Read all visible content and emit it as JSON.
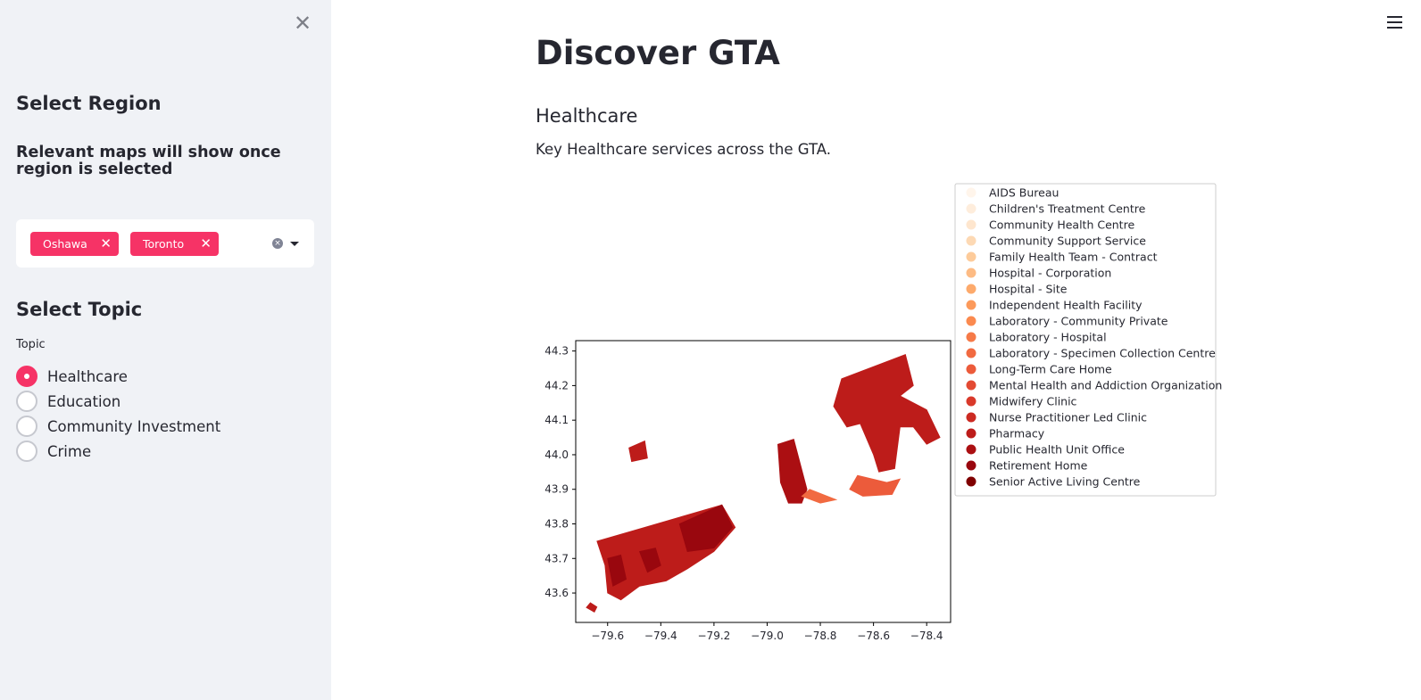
{
  "sidebar": {
    "close_glyph": "✕",
    "select_region_heading": "Select Region",
    "region_note": "Relevant maps will show once region is selected",
    "selected_regions": [
      {
        "label": "Oshawa",
        "remove_glyph": "✕"
      },
      {
        "label": "Toronto",
        "remove_glyph": "✕"
      }
    ],
    "select_topic_heading": "Select Topic",
    "topic_label": "Topic",
    "topics": [
      {
        "label": "Healthcare",
        "selected": true
      },
      {
        "label": "Education",
        "selected": false
      },
      {
        "label": "Community Investment",
        "selected": false
      },
      {
        "label": "Crime",
        "selected": false
      }
    ],
    "accent_color": "#f63366"
  },
  "header": {
    "menu_icon": "hamburger-menu-icon"
  },
  "main": {
    "title": "Discover GTA",
    "subheader": "Healthcare",
    "description": "Key Healthcare services across the GTA."
  },
  "chart_data": {
    "type": "map",
    "title": "",
    "xlabel": "",
    "ylabel": "",
    "xlim": [
      -79.72,
      -78.31
    ],
    "ylim": [
      43.515,
      44.33
    ],
    "x_ticks": [
      "−79.6",
      "−79.4",
      "−79.2",
      "−79.0",
      "−78.8",
      "−78.6",
      "−78.4"
    ],
    "x_tick_values": [
      -79.6,
      -79.4,
      -79.2,
      -79.0,
      -78.8,
      -78.6,
      -78.4
    ],
    "y_ticks": [
      "44.3",
      "44.2",
      "44.1",
      "44.0",
      "43.9",
      "43.8",
      "43.7",
      "43.6"
    ],
    "y_tick_values": [
      44.3,
      44.2,
      44.1,
      44.0,
      43.9,
      43.8,
      43.7,
      43.6
    ],
    "legend_placement": "outside-right",
    "grid": false,
    "legend": [
      {
        "label": "AIDS Bureau",
        "color": "#fff5eb"
      },
      {
        "label": "Children's Treatment Centre",
        "color": "#feeddc"
      },
      {
        "label": "Community Health Centre",
        "color": "#fee6ce"
      },
      {
        "label": "Community Support Service",
        "color": "#fdd9b4"
      },
      {
        "label": "Family Health Team - Contract",
        "color": "#fdcb9a"
      },
      {
        "label": "Hospital - Corporation",
        "color": "#fdbb84"
      },
      {
        "label": "Hospital - Site",
        "color": "#fdaa6c"
      },
      {
        "label": "Independent Health Facility",
        "color": "#fc9a5b"
      },
      {
        "label": "Laboratory - Community Private",
        "color": "#fb8a4f"
      },
      {
        "label": "Laboratory - Hospital",
        "color": "#f67a48"
      },
      {
        "label": "Laboratory - Specimen Collection Centre",
        "color": "#f16a41"
      },
      {
        "label": "Long-Term Care Home",
        "color": "#ec5b3b"
      },
      {
        "label": "Mental Health and Addiction Organization",
        "color": "#e34a33"
      },
      {
        "label": "Midwifery Clinic",
        "color": "#d9392a"
      },
      {
        "label": "Nurse Practitioner Led Clinic",
        "color": "#cc2a22"
      },
      {
        "label": "Pharmacy",
        "color": "#bd1c1a"
      },
      {
        "label": "Public Health Unit Office",
        "color": "#ab0f12"
      },
      {
        "label": "Retirement Home",
        "color": "#99070e"
      },
      {
        "label": "Senior Active Living Centre",
        "color": "#7f0000"
      }
    ],
    "regions": [
      {
        "name": "Toronto",
        "color": "#bd1c1a",
        "polygon": [
          [
            -79.64,
            43.75
          ],
          [
            -79.46,
            43.79
          ],
          [
            -79.17,
            43.855
          ],
          [
            -79.12,
            43.79
          ],
          [
            -79.2,
            43.72
          ],
          [
            -79.3,
            43.67
          ],
          [
            -79.38,
            43.635
          ],
          [
            -79.48,
            43.62
          ],
          [
            -79.55,
            43.58
          ],
          [
            -79.6,
            43.6
          ],
          [
            -79.61,
            43.68
          ]
        ]
      },
      {
        "name": "Toronto-island",
        "color": "#bd1c1a",
        "polygon": [
          [
            -79.68,
            43.558
          ],
          [
            -79.65,
            43.545
          ],
          [
            -79.64,
            43.56
          ],
          [
            -79.665,
            43.572
          ]
        ]
      },
      {
        "name": "Toronto-dark-east",
        "color": "#99070e",
        "polygon": [
          [
            -79.33,
            43.8
          ],
          [
            -79.17,
            43.855
          ],
          [
            -79.13,
            43.79
          ],
          [
            -79.2,
            43.73
          ],
          [
            -79.3,
            43.72
          ]
        ]
      },
      {
        "name": "Toronto-dark-central",
        "color": "#99070e",
        "polygon": [
          [
            -79.48,
            43.72
          ],
          [
            -79.42,
            43.73
          ],
          [
            -79.4,
            43.68
          ],
          [
            -79.45,
            43.66
          ]
        ]
      },
      {
        "name": "Toronto-dark-west",
        "color": "#99070e",
        "polygon": [
          [
            -79.6,
            43.7
          ],
          [
            -79.55,
            43.71
          ],
          [
            -79.53,
            43.64
          ],
          [
            -79.58,
            43.62
          ]
        ]
      },
      {
        "name": "North-pocket",
        "color": "#bd1c1a",
        "polygon": [
          [
            -79.52,
            44.02
          ],
          [
            -79.46,
            44.04
          ],
          [
            -79.45,
            43.99
          ],
          [
            -79.51,
            43.98
          ]
        ]
      },
      {
        "name": "Oshawa-west",
        "color": "#ab0f12",
        "polygon": [
          [
            -78.96,
            44.03
          ],
          [
            -78.9,
            44.045
          ],
          [
            -78.85,
            43.9
          ],
          [
            -78.87,
            43.86
          ],
          [
            -78.92,
            43.86
          ],
          [
            -78.95,
            43.92
          ]
        ]
      },
      {
        "name": "Oshawa-west-shore",
        "color": "#f16a41",
        "polygon": [
          [
            -78.87,
            43.88
          ],
          [
            -78.84,
            43.9
          ],
          [
            -78.74,
            43.87
          ],
          [
            -78.8,
            43.86
          ]
        ]
      },
      {
        "name": "Oshawa-north",
        "color": "#bd1c1a",
        "polygon": [
          [
            -78.72,
            44.22
          ],
          [
            -78.48,
            44.29
          ],
          [
            -78.45,
            44.2
          ],
          [
            -78.5,
            44.17
          ],
          [
            -78.4,
            44.13
          ],
          [
            -78.35,
            44.05
          ],
          [
            -78.4,
            44.03
          ],
          [
            -78.45,
            44.08
          ],
          [
            -78.5,
            44.08
          ],
          [
            -78.52,
            43.96
          ],
          [
            -78.58,
            43.95
          ],
          [
            -78.6,
            44.0
          ],
          [
            -78.65,
            44.09
          ],
          [
            -78.7,
            44.08
          ],
          [
            -78.75,
            44.14
          ]
        ]
      },
      {
        "name": "Oshawa-south",
        "color": "#ec5b3b",
        "polygon": [
          [
            -78.66,
            43.94
          ],
          [
            -78.55,
            43.92
          ],
          [
            -78.5,
            43.93
          ],
          [
            -78.53,
            43.885
          ],
          [
            -78.64,
            43.88
          ],
          [
            -78.69,
            43.9
          ]
        ]
      }
    ]
  }
}
